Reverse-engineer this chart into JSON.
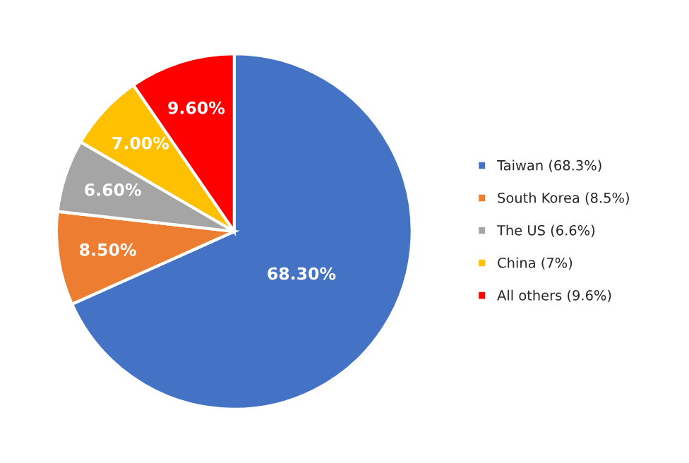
{
  "chart_data": {
    "type": "pie",
    "categories": [
      "Taiwan (68.3%)",
      "South Korea (8.5%)",
      "The US (6.6%)",
      "China (7%)",
      "All others (9.6%)"
    ],
    "values": [
      68.3,
      8.5,
      6.6,
      7.0,
      9.6
    ],
    "colors": [
      "#4472c4",
      "#ed7d31",
      "#a5a5a5",
      "#ffc000",
      "#ff0000"
    ],
    "value_labels": [
      "68.30%",
      "8.50%",
      "6.60%",
      "7.00%",
      "9.60%"
    ],
    "legend": "right"
  }
}
